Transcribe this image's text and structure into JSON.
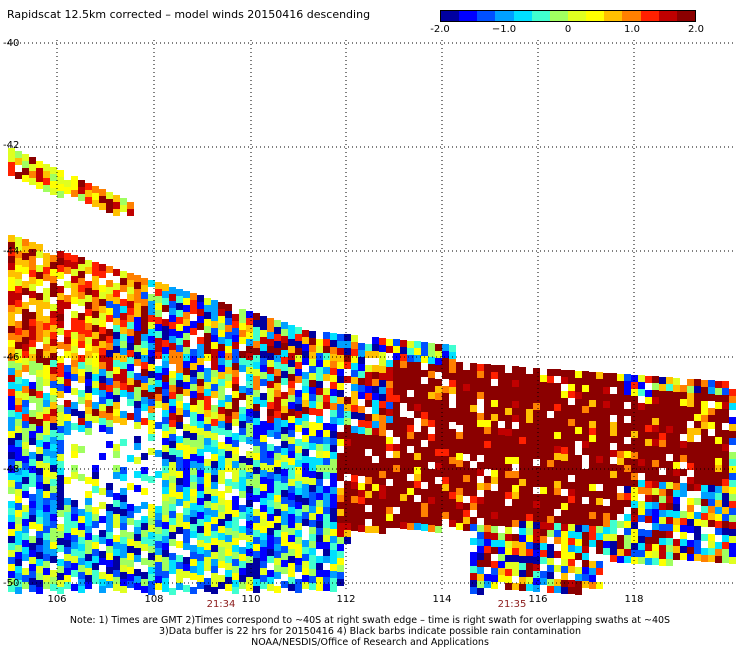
{
  "title": "Rapidscat 12.5km corrected – model winds 20150416 descending",
  "colorbar": {
    "labels": [
      "-2.0",
      "−1.0",
      "0",
      "1.0",
      "2.0"
    ],
    "colors": [
      "#0000a0",
      "#0000ff",
      "#0050ff",
      "#00a0ff",
      "#00e0ff",
      "#40ffd0",
      "#a0ff60",
      "#e0ff20",
      "#ffff00",
      "#ffc000",
      "#ff8000",
      "#ff2000",
      "#c00000",
      "#8b0000"
    ]
  },
  "map": {
    "lon_ticks": [
      "106",
      "108",
      "110",
      "112",
      "114",
      "116",
      "118"
    ],
    "lat_labels": [
      "-40",
      "-42",
      "-44",
      "-46",
      "-48",
      "-50"
    ],
    "times": [
      "21:34",
      "21:35"
    ],
    "lat_range": [
      -50,
      -40
    ],
    "lon_range": [
      105,
      119.5
    ],
    "data_colors": [
      "#0000a0",
      "#0000ff",
      "#0050ff",
      "#00a0ff",
      "#00e0ff",
      "#40ffd0",
      "#a0ff60",
      "#e0ff20",
      "#ffff00",
      "#ffc000",
      "#ff8000",
      "#ff2000",
      "#c00000",
      "#8b0000"
    ]
  },
  "notes": [
    "Note: 1) Times are GMT 2)Times correspond to ~40S at right swath edge – time is right swath for overlapping swaths at ~40S",
    "3)Data buffer is 22 hrs for 20150416 4) Black barbs indicate possible rain contamination",
    "NOAA/NESDIS/Office of Research and Applications"
  ]
}
